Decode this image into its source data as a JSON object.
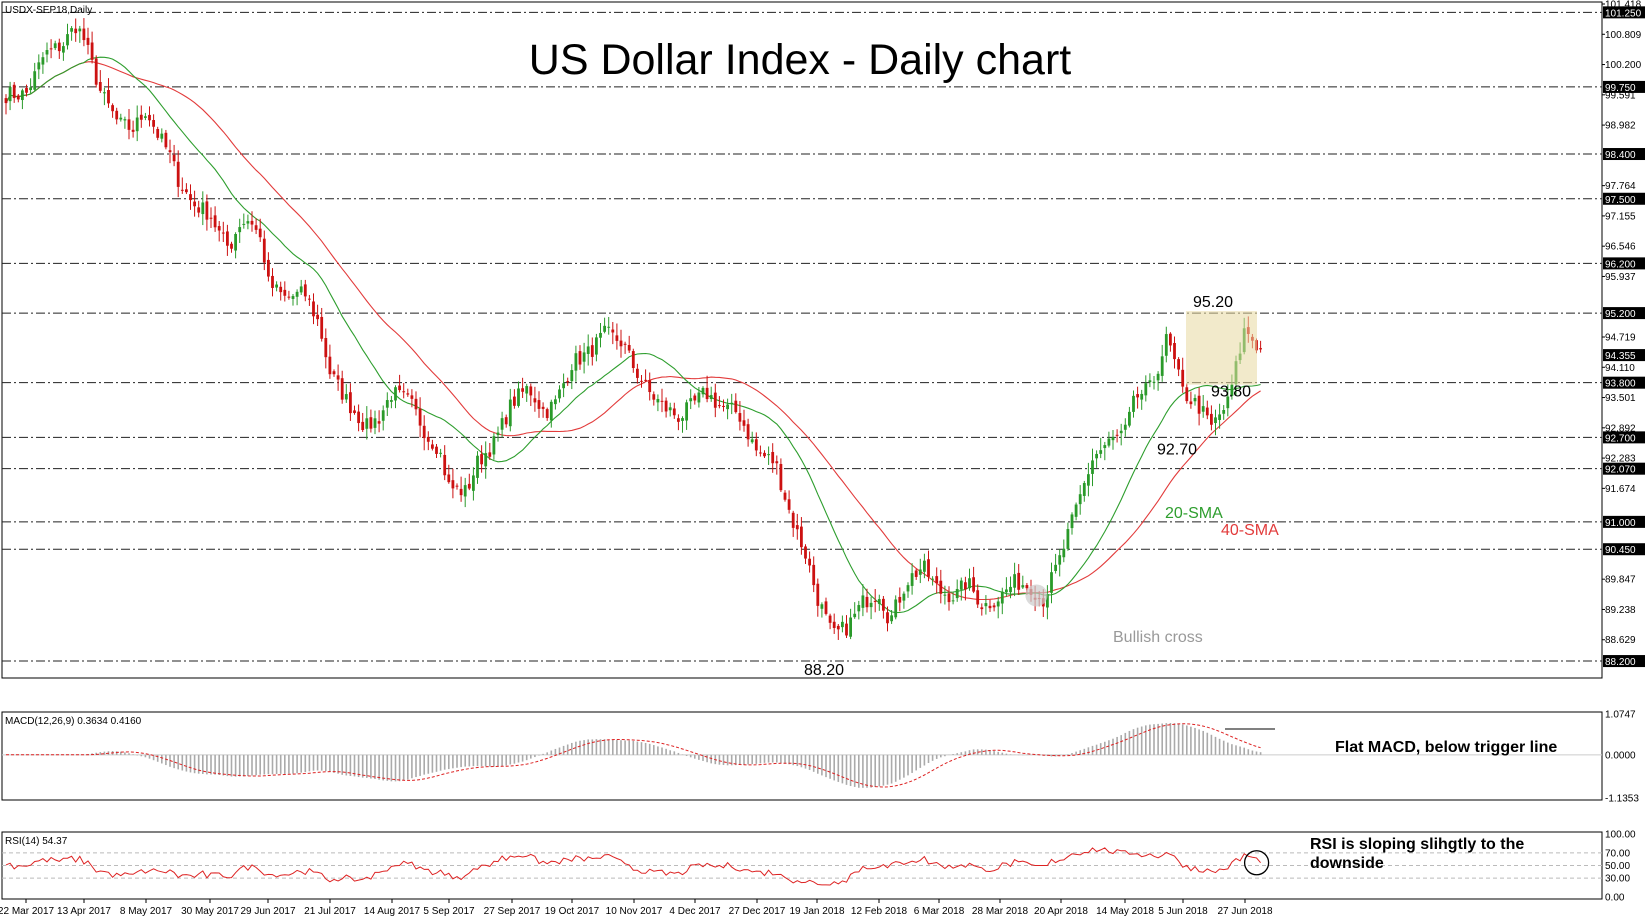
{
  "header": {
    "symbol_label": "USDX-SEP18,Daily",
    "title": "US Dollar Index - Daily chart"
  },
  "chart_data": [
    {
      "type": "candlestick",
      "title": "US Dollar Index - Daily chart",
      "x_tick_labels": [
        "22 Mar 2017",
        "13 Apr 2017",
        "8 May 2017",
        "30 May 2017",
        "29 Jun 2017",
        "21 Jul 2017",
        "14 Aug 2017",
        "5 Sep 2017",
        "27 Sep 2017",
        "19 Oct 2017",
        "10 Nov 2017",
        "4 Dec 2017",
        "27 Dec 2017",
        "19 Jan 2018",
        "12 Feb 2018",
        "6 Mar 2018",
        "28 Mar 2018",
        "20 Apr 2018",
        "14 May 2018",
        "5 Jun 2018",
        "27 Jun 2018"
      ],
      "y_axis_ticks": [
        "101.418",
        "100.809",
        "100.200",
        "99.591",
        "98.982",
        "97.764",
        "97.155",
        "96.546",
        "95.937",
        "94.719",
        "94.110",
        "93.501",
        "92.892",
        "92.283",
        "91.674",
        "89.847",
        "89.238",
        "88.629"
      ],
      "ylim": [
        88.0,
        101.418
      ],
      "levels": [
        101.25,
        99.75,
        98.4,
        97.5,
        96.2,
        95.2,
        93.8,
        92.7,
        92.07,
        91.0,
        90.45,
        88.2
      ],
      "level_labels": [
        "101.250",
        "99.750",
        "98.400",
        "97.500",
        "96.200",
        "95.200",
        "93.800",
        "92.700",
        "92.070",
        "91.000",
        "90.450",
        "88.200"
      ],
      "current_price": 94.355,
      "current_price_label": "94.355",
      "key_points": [
        {
          "label": "95.20",
          "x": "27 Jun 2018",
          "y": 95.2
        },
        {
          "label": "93.80",
          "x": "27 Jun 2018",
          "y": 93.8
        },
        {
          "label": "92.70",
          "x": "5 Jun 2018",
          "y": 92.7
        },
        {
          "label": "88.20",
          "x": "19 Jan 2018",
          "y": 88.2
        }
      ],
      "close_path": [
        [
          "22 Mar 2017",
          99.6
        ],
        [
          "29 Mar 2017",
          100.4
        ],
        [
          "5 Apr 2017",
          100.6
        ],
        [
          "10 Apr 2017",
          101.0
        ],
        [
          "13 Apr 2017",
          100.7
        ],
        [
          "20 Apr 2017",
          99.6
        ],
        [
          "27 Apr 2017",
          99.0
        ],
        [
          "3 May 2017",
          98.9
        ],
        [
          "8 May 2017",
          99.3
        ],
        [
          "12 May 2017",
          98.8
        ],
        [
          "16 May 2017",
          98.4
        ],
        [
          "19 May 2017",
          97.9
        ],
        [
          "24 May 2017",
          97.4
        ],
        [
          "30 May 2017",
          97.2
        ],
        [
          "5 Jun 2017",
          96.7
        ],
        [
          "9 Jun 2017",
          96.5
        ],
        [
          "14 Jun 2017",
          97.0
        ],
        [
          "20 Jun 2017",
          97.1
        ],
        [
          "26 Jun 2017",
          96.6
        ],
        [
          "29 Jun 2017",
          95.8
        ],
        [
          "5 Jul 2017",
          95.5
        ],
        [
          "12 Jul 2017",
          95.6
        ],
        [
          "17 Jul 2017",
          95.0
        ],
        [
          "21 Jul 2017",
          94.0
        ],
        [
          "28 Jul 2017",
          93.4
        ],
        [
          "4 Aug 2017",
          92.9
        ],
        [
          "9 Aug 2017",
          93.1
        ],
        [
          "14 Aug 2017",
          93.6
        ],
        [
          "21 Aug 2017",
          93.4
        ],
        [
          "28 Aug 2017",
          92.7
        ],
        [
          "1 Sep 2017",
          92.5
        ],
        [
          "5 Sep 2017",
          91.7
        ],
        [
          "11 Sep 2017",
          91.6
        ],
        [
          "15 Sep 2017",
          92.2
        ],
        [
          "21 Sep 2017",
          92.6
        ],
        [
          "27 Sep 2017",
          93.4
        ],
        [
          "3 Oct 2017",
          93.7
        ],
        [
          "9 Oct 2017",
          93.2
        ],
        [
          "13 Oct 2017",
          93.4
        ],
        [
          "19 Oct 2017",
          94.2
        ],
        [
          "25 Oct 2017",
          94.4
        ],
        [
          "31 Oct 2017",
          94.8
        ],
        [
          "6 Nov 2017",
          94.6
        ],
        [
          "10 Nov 2017",
          94.1
        ],
        [
          "16 Nov 2017",
          93.6
        ],
        [
          "22 Nov 2017",
          93.3
        ],
        [
          "28 Nov 2017",
          93.1
        ],
        [
          "4 Dec 2017",
          93.4
        ],
        [
          "8 Dec 2017",
          93.6
        ],
        [
          "14 Dec 2017",
          93.3
        ],
        [
          "20 Dec 2017",
          93.2
        ],
        [
          "27 Dec 2017",
          92.4
        ],
        [
          "3 Jan 2018",
          92.2
        ],
        [
          "9 Jan 2018",
          91.1
        ],
        [
          "15 Jan 2018",
          90.3
        ],
        [
          "19 Jan 2018",
          89.5
        ],
        [
          "25 Jan 2018",
          88.7
        ],
        [
          "31 Jan 2018",
          88.9
        ],
        [
          "6 Feb 2018",
          89.4
        ],
        [
          "12 Feb 2018",
          89.6
        ],
        [
          "16 Feb 2018",
          89.0
        ],
        [
          "22 Feb 2018",
          89.8
        ],
        [
          "28 Feb 2018",
          90.1
        ],
        [
          "6 Mar 2018",
          89.6
        ],
        [
          "12 Mar 2018",
          89.5
        ],
        [
          "16 Mar 2018",
          89.8
        ],
        [
          "22 Mar 2018",
          89.3
        ],
        [
          "28 Mar 2018",
          89.5
        ],
        [
          "3 Apr 2018",
          89.8
        ],
        [
          "9 Apr 2018",
          89.7
        ],
        [
          "13 Apr 2018",
          89.4
        ],
        [
          "20 Apr 2018",
          90.3
        ],
        [
          "26 Apr 2018",
          91.3
        ],
        [
          "2 May 2018",
          92.3
        ],
        [
          "8 May 2018",
          92.6
        ],
        [
          "14 May 2018",
          92.8
        ],
        [
          "18 May 2018",
          93.5
        ],
        [
          "24 May 2018",
          93.7
        ],
        [
          "30 May 2018",
          94.7
        ],
        [
          "5 Jun 2018",
          93.6
        ],
        [
          "11 Jun 2018",
          93.3
        ],
        [
          "15 Jun 2018",
          92.9
        ],
        [
          "21 Jun 2018",
          93.4
        ],
        [
          "27 Jun 2018",
          94.9
        ],
        [
          "3 Jul 2018",
          94.4
        ]
      ],
      "series": [
        {
          "name": "20-SMA",
          "color": "#2e9e2e"
        },
        {
          "name": "40-SMA",
          "color": "#e23b3b"
        }
      ],
      "bullish_cross": {
        "label": "Bullish cross",
        "x": "13 Apr 2018",
        "y": 89.6
      },
      "candle_up_color": "#2a9a2a",
      "candle_down_color": "#cc1111"
    },
    {
      "type": "bar",
      "title": "MACD(12,26,9) 0.3634 0.4160",
      "y_axis_ticks": [
        "1.0747",
        "0.0000",
        "-1.1353"
      ],
      "ylim": [
        -1.1353,
        1.0747
      ],
      "annotation": "Flat MACD, below trigger line",
      "current": 0.3634,
      "signal": 0.416
    },
    {
      "type": "line",
      "title": "RSI(14) 54.37",
      "y_axis_ticks": [
        "100.00",
        "70.00",
        "50.00",
        "30.00",
        "0.00"
      ],
      "ylim": [
        0,
        100
      ],
      "current": 54.37,
      "annotation": "RSI is sloping slihgtly to the downside"
    }
  ]
}
